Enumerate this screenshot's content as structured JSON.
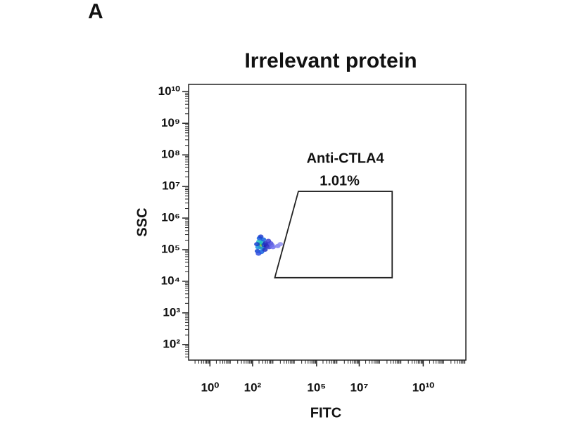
{
  "panel_label": "A",
  "chart_data": {
    "type": "scatter",
    "title": "Irrelevant protein",
    "x_label": "FITC",
    "y_label": "SSC",
    "xscale": "log",
    "yscale": "log",
    "xlim": [
      0.1,
      1000000000000
    ],
    "ylim": [
      32,
      17000000000
    ],
    "xticks": [
      {
        "value": 1,
        "label": "10⁰"
      },
      {
        "value": 100,
        "label": "10²"
      },
      {
        "value": 100000,
        "label": "10⁵"
      },
      {
        "value": 10000000,
        "label": "10⁷"
      },
      {
        "value": 10000000000,
        "label": "10¹⁰"
      }
    ],
    "yticks": [
      {
        "value": 100,
        "label": "10²"
      },
      {
        "value": 1000,
        "label": "10³"
      },
      {
        "value": 10000,
        "label": "10⁴"
      },
      {
        "value": 100000,
        "label": "10⁵"
      },
      {
        "value": 1000000,
        "label": "10⁶"
      },
      {
        "value": 10000000,
        "label": "10⁷"
      },
      {
        "value": 100000000,
        "label": "10⁸"
      },
      {
        "value": 1000000000,
        "label": "10⁹"
      },
      {
        "value": 10000000000,
        "label": "10¹⁰"
      }
    ],
    "points": {
      "x": [
        230,
        250,
        200,
        280,
        180,
        300,
        210,
        320,
        160,
        170,
        260,
        350,
        400,
        450,
        520,
        600,
        700,
        800,
        550,
        380,
        900,
        240,
        190,
        1500,
        2000
      ],
      "y": [
        150000,
        120000,
        180000,
        170000,
        120000,
        110000,
        230000,
        210000,
        150000,
        90000,
        85000,
        140000,
        160000,
        130000,
        150000,
        120000,
        160000,
        140000,
        190000,
        100000,
        120000,
        260000,
        75000,
        130000,
        150000
      ],
      "colors": [
        "#3fbf3f",
        "#b0d030",
        "#20c0c0",
        "#20c0c0",
        "#1090e0",
        "#1090e0",
        "#1060e0",
        "#1060e0",
        "#1040d0",
        "#1040d0",
        "#1060e0",
        "#1040d0",
        "#2030c0",
        "#2020b0",
        "#3030c0",
        "#4040d0",
        "#5050e0",
        "#6060e0",
        "#4040d0",
        "#2030c0",
        "#7070f0",
        "#2040d0",
        "#3050e0",
        "#8080f0",
        "#9090f0"
      ]
    },
    "gate": {
      "name": "Anti-CTLA4",
      "percent": 1.01,
      "percent_label": "1.01%",
      "x": [
        14000,
        350000000,
        350000000,
        1100
      ],
      "y": [
        7000000,
        7000000,
        13000,
        13000
      ]
    }
  }
}
